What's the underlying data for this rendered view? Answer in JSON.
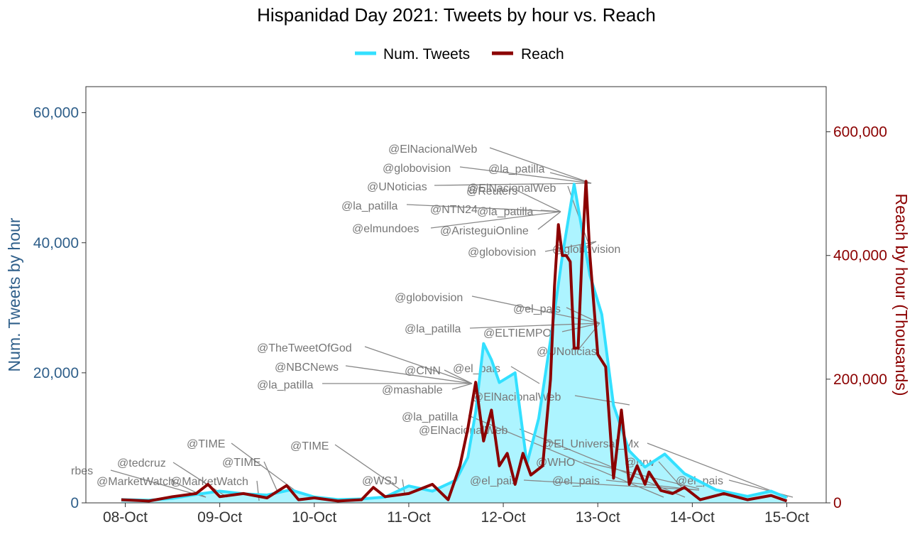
{
  "chart_data": {
    "type": "line",
    "title": "Hispanidad Day 2021: Tweets by hour vs. Reach",
    "legend_position": "top",
    "grid": false,
    "colors": {
      "tweets": "#33e0ff",
      "tweets_fill": "#adf4ff",
      "reach": "#8b0000",
      "left_axis": "#2f5f8a",
      "right_axis": "#8b0000"
    },
    "ylabel_left": "Num. Tweets by hour",
    "ylabel_right": "Reach by hour (Thousands)",
    "ylim_left": [
      0,
      64000
    ],
    "ylim_right": [
      0,
      673000
    ],
    "xlim": [
      "2021-10-07 14:00",
      "2021-10-15 10:00"
    ],
    "y_ticks_left": [
      "0",
      "20,000",
      "40,000",
      "60,000"
    ],
    "y_ticks_right": [
      "0",
      "200,000",
      "400,000",
      "600,000"
    ],
    "x_ticks": [
      "08-Oct",
      "09-Oct",
      "10-Oct",
      "11-Oct",
      "12-Oct",
      "13-Oct",
      "14-Oct",
      "15-Oct"
    ],
    "series": [
      {
        "name": "Num. Tweets",
        "x": [
          "2021-10-07 23:00",
          "2021-10-08 06:00",
          "2021-10-08 12:00",
          "2021-10-08 18:00",
          "2021-10-09 00:00",
          "2021-10-09 06:00",
          "2021-10-09 12:00",
          "2021-10-09 18:00",
          "2021-10-10 00:00",
          "2021-10-10 06:00",
          "2021-10-10 12:00",
          "2021-10-10 18:00",
          "2021-10-11 00:00",
          "2021-10-11 06:00",
          "2021-10-11 12:00",
          "2021-10-11 15:00",
          "2021-10-11 17:00",
          "2021-10-11 19:00",
          "2021-10-11 21:00",
          "2021-10-11 23:00",
          "2021-10-12 03:00",
          "2021-10-12 06:00",
          "2021-10-12 09:00",
          "2021-10-12 12:00",
          "2021-10-12 15:00",
          "2021-10-12 18:00",
          "2021-10-12 20:00",
          "2021-10-12 22:00",
          "2021-10-13 01:00",
          "2021-10-13 04:00",
          "2021-10-13 08:00",
          "2021-10-13 12:00",
          "2021-10-13 17:00",
          "2021-10-13 22:00",
          "2021-10-14 06:00",
          "2021-10-14 14:00",
          "2021-10-14 20:00",
          "2021-10-15 00:00"
        ],
        "values": [
          500,
          400,
          700,
          1300,
          1800,
          1400,
          1200,
          2000,
          900,
          500,
          600,
          900,
          2600,
          1800,
          3500,
          7000,
          14000,
          24500,
          22000,
          18500,
          20000,
          6000,
          13000,
          25000,
          38000,
          49000,
          42000,
          35000,
          29000,
          15000,
          8000,
          5500,
          7500,
          4500,
          2000,
          1000,
          1800,
          800
        ]
      },
      {
        "name": "Reach",
        "x": [
          "2021-10-07 23:00",
          "2021-10-08 06:00",
          "2021-10-08 12:00",
          "2021-10-08 18:00",
          "2021-10-08 21:00",
          "2021-10-09 00:00",
          "2021-10-09 06:00",
          "2021-10-09 12:00",
          "2021-10-09 17:00",
          "2021-10-09 20:00",
          "2021-10-10 00:00",
          "2021-10-10 06:00",
          "2021-10-10 12:00",
          "2021-10-10 15:00",
          "2021-10-10 18:00",
          "2021-10-11 00:00",
          "2021-10-11 06:00",
          "2021-10-11 10:00",
          "2021-10-11 13:00",
          "2021-10-11 15:00",
          "2021-10-11 17:00",
          "2021-10-11 19:00",
          "2021-10-11 21:00",
          "2021-10-11 23:00",
          "2021-10-12 01:00",
          "2021-10-12 03:00",
          "2021-10-12 05:00",
          "2021-10-12 07:00",
          "2021-10-12 10:00",
          "2021-10-12 12:00",
          "2021-10-12 13:00",
          "2021-10-12 14:00",
          "2021-10-12 15:00",
          "2021-10-12 16:00",
          "2021-10-12 17:00",
          "2021-10-12 18:00",
          "2021-10-12 19:00",
          "2021-10-12 20:00",
          "2021-10-12 21:00",
          "2021-10-12 22:00",
          "2021-10-13 00:00",
          "2021-10-13 02:00",
          "2021-10-13 04:00",
          "2021-10-13 06:00",
          "2021-10-13 08:00",
          "2021-10-13 10:00",
          "2021-10-13 12:00",
          "2021-10-13 13:00",
          "2021-10-13 16:00",
          "2021-10-13 19:00",
          "2021-10-13 22:00",
          "2021-10-14 02:00",
          "2021-10-14 08:00",
          "2021-10-14 14:00",
          "2021-10-14 20:00",
          "2021-10-15 00:00"
        ],
        "values": [
          5000,
          3000,
          10000,
          15000,
          30000,
          10000,
          15000,
          8000,
          28000,
          5000,
          8000,
          3000,
          5000,
          25000,
          10000,
          15000,
          30000,
          5000,
          60000,
          120000,
          195000,
          100000,
          150000,
          60000,
          80000,
          30000,
          80000,
          45000,
          60000,
          200000,
          350000,
          450000,
          400000,
          400000,
          390000,
          250000,
          250000,
          400000,
          520000,
          400000,
          240000,
          220000,
          40000,
          150000,
          30000,
          60000,
          30000,
          50000,
          20000,
          15000,
          25000,
          5000,
          15000,
          5000,
          12000,
          3000
        ]
      }
    ],
    "annotations": [
      "@ElNacionalWeb",
      "@globovision",
      "@la_patilla",
      "@UNoticias",
      "@ElNacionalWeb",
      "@Reuters",
      "@la_patilla",
      "@NTN24",
      "@la_patilla",
      "@elmundoes",
      "@AristeguiOnline",
      "@globovision",
      "@globovision",
      "@globovision",
      "@el_pais",
      "@la_patilla",
      "@ELTIEMPO",
      "@UNoticias",
      "@TheTweetOfGod",
      "@NBCNews",
      "@CNN",
      "@el_pais",
      "@la_patilla",
      "@mashable",
      "@ElNacionalWeb",
      "@la_patilla",
      "@ElNacionalWeb",
      "@El_Universal_Mx",
      "@WHO",
      "@hrw",
      "@TIME",
      "@TIME",
      "@TIME",
      "@tedcruz",
      "rbes",
      "@MarketWatch",
      "@MarketWatch",
      "@WSJ",
      "@el_pais",
      "@el_pais",
      "@el_pais"
    ]
  }
}
